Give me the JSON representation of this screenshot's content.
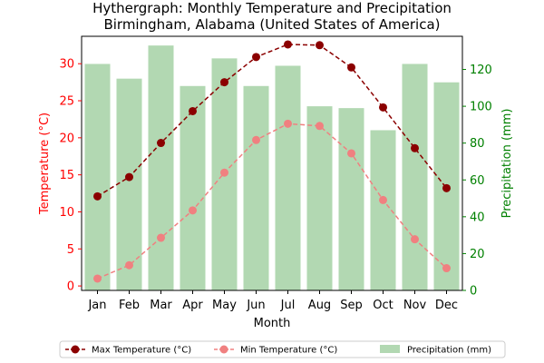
{
  "chart_data": {
    "type": "bar+line",
    "title_line1": "Hythergraph: Monthly Temperature and Precipitation",
    "title_line2": "Birmingham, Alabama (United States of America)",
    "xlabel": "Month",
    "ylabel_left": "Temperature (°C)",
    "ylabel_right": "Precipitation (mm)",
    "categories": [
      "Jan",
      "Feb",
      "Mar",
      "Apr",
      "May",
      "Jun",
      "Jul",
      "Aug",
      "Sep",
      "Oct",
      "Nov",
      "Dec"
    ],
    "ylim_left": [
      -0.6,
      33.7
    ],
    "ylim_right": [
      0,
      138
    ],
    "yticks_left": [
      0,
      5,
      10,
      15,
      20,
      25,
      30
    ],
    "yticks_right": [
      0,
      20,
      40,
      60,
      80,
      100,
      120
    ],
    "series": [
      {
        "name": "Max Temperature (°C)",
        "axis": "left",
        "kind": "line",
        "color": "#8b0000",
        "values": [
          12.1,
          14.7,
          19.3,
          23.6,
          27.5,
          30.9,
          32.6,
          32.5,
          29.5,
          24.1,
          18.6,
          13.2
        ]
      },
      {
        "name": "Min Temperature (°C)",
        "axis": "left",
        "kind": "line",
        "color": "#f08080",
        "values": [
          1.0,
          2.8,
          6.5,
          10.2,
          15.3,
          19.7,
          21.9,
          21.6,
          17.9,
          11.6,
          6.3,
          2.4
        ]
      },
      {
        "name": "Precipitation (mm)",
        "axis": "right",
        "kind": "bar",
        "color": "#b2d8b2",
        "values": [
          123,
          115,
          133,
          111,
          126,
          111,
          122,
          100,
          99,
          87,
          123,
          113
        ]
      }
    ],
    "left_axis_color": "#ff0000",
    "right_axis_color": "#008000",
    "legend_position": "bottom",
    "grid": false
  }
}
